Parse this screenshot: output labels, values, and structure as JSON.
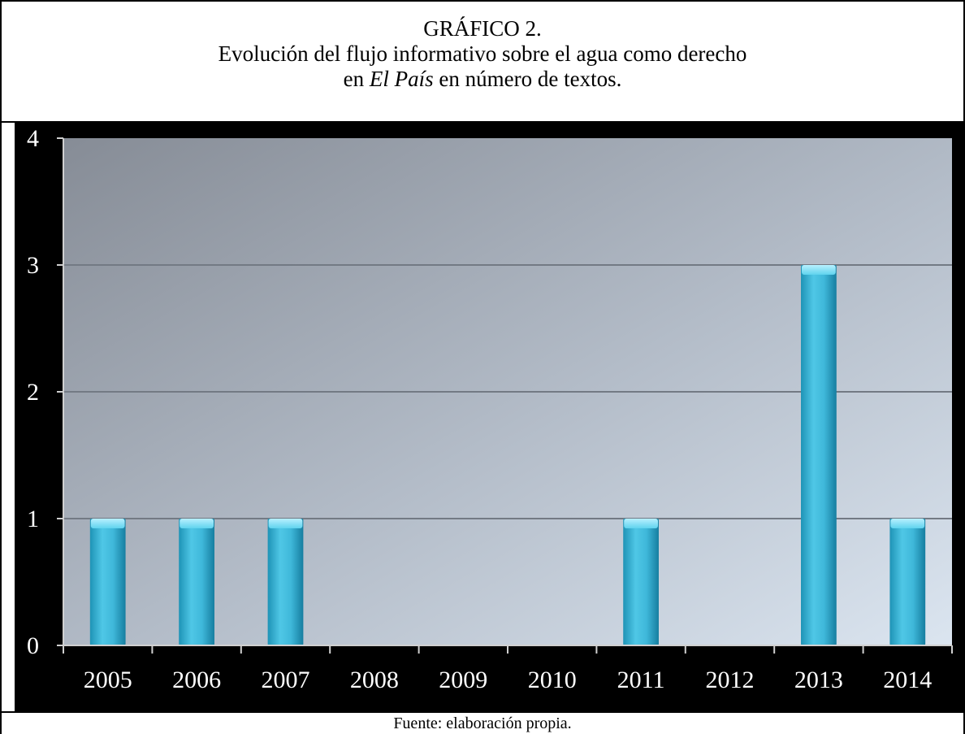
{
  "header": {
    "line1": "GRÁFICO 2.",
    "line2": "Evolución del flujo informativo sobre el agua como derecho",
    "line3_prefix": "en ",
    "line3_italic": "El País",
    "line3_suffix": " en número de textos."
  },
  "footer": {
    "source": "Fuente: elaboración propia."
  },
  "chart_data": {
    "type": "bar",
    "categories": [
      "2005",
      "2006",
      "2007",
      "2008",
      "2009",
      "2010",
      "2011",
      "2012",
      "2013",
      "2014"
    ],
    "values": [
      1,
      1,
      1,
      0,
      0,
      0,
      1,
      0,
      3,
      1
    ],
    "ylim": [
      0,
      4
    ],
    "yticks": [
      "0",
      "1",
      "2",
      "3",
      "4"
    ],
    "grid": true,
    "colors": {
      "bar_light": "#5fd3ee",
      "bar_dark": "#1c8fb3",
      "panel": "#000000",
      "plot_top": "#8c929c",
      "plot_bottom": "#d8e2ee"
    }
  }
}
